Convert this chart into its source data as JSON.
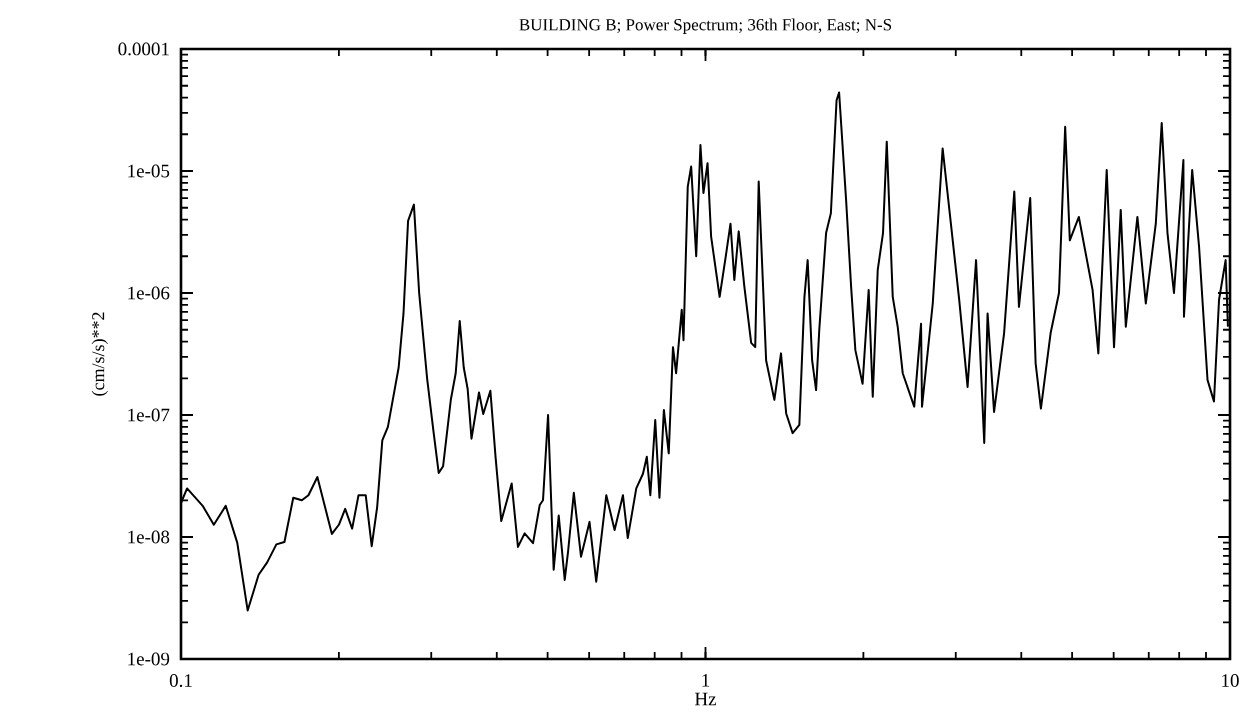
{
  "chart_data": {
    "type": "line",
    "title": "BUILDING B; Power Spectrum; 36th Floor, East; N-S",
    "xlabel": "Hz",
    "ylabel": "(cm/s/s)**2",
    "log": "xy",
    "grid": false,
    "marker": "none",
    "line_style": "solid",
    "color": "#000000",
    "xlim": [
      0.1,
      10
    ],
    "ylim": [
      1e-09,
      0.0001
    ],
    "xticks": [
      0.1,
      1,
      10
    ],
    "yticks": [
      {
        "value": 1e-09,
        "label": "1e-09"
      },
      {
        "value": 1e-08,
        "label": "1e-08"
      },
      {
        "value": 1e-07,
        "label": "1e-07"
      },
      {
        "value": 1e-06,
        "label": "1e-06"
      },
      {
        "value": 1e-05,
        "label": "1e-05"
      },
      0.0001
    ],
    "x": [
      0.1,
      0.1027,
      0.11,
      0.1155,
      0.1217,
      0.128,
      0.134,
      0.1406,
      0.146,
      0.152,
      0.1575,
      0.1637,
      0.17,
      0.175,
      0.182,
      0.194,
      0.2,
      0.2056,
      0.212,
      0.218,
      0.225,
      0.231,
      0.2366,
      0.242,
      0.248,
      0.26,
      0.2656,
      0.271,
      0.278,
      0.2845,
      0.2946,
      0.303,
      0.31,
      0.316,
      0.327,
      0.334,
      0.34,
      0.346,
      0.352,
      0.358,
      0.37,
      0.377,
      0.389,
      0.398,
      0.408,
      0.427,
      0.439,
      0.452,
      0.469,
      0.483,
      0.49,
      0.501,
      0.5135,
      0.525,
      0.539,
      0.547,
      0.561,
      0.579,
      0.601,
      0.619,
      0.647,
      0.671,
      0.696,
      0.711,
      0.738,
      0.76,
      0.773,
      0.785,
      0.802,
      0.817,
      0.833,
      0.851,
      0.867,
      0.879,
      0.901,
      0.908,
      0.925,
      0.939,
      0.96,
      0.978,
      0.991,
      1.009,
      1.025,
      1.064,
      1.095,
      1.116,
      1.135,
      1.157,
      1.186,
      1.222,
      1.244,
      1.263,
      1.305,
      1.353,
      1.393,
      1.425,
      1.466,
      1.51,
      1.544,
      1.566,
      1.597,
      1.625,
      1.648,
      1.698,
      1.734,
      1.778,
      1.798,
      1.854,
      1.895,
      1.931,
      1.993,
      2.047,
      2.084,
      2.13,
      2.18,
      2.216,
      2.275,
      2.325,
      2.377,
      2.5,
      2.576,
      2.587,
      2.712,
      2.832,
      2.894,
      3.046,
      3.16,
      3.28,
      3.4,
      3.45,
      3.55,
      3.71,
      3.88,
      3.96,
      4.16,
      4.26,
      4.36,
      4.55,
      4.72,
      4.85,
      4.95,
      5.15,
      5.47,
      5.61,
      5.82,
      6.01,
      6.19,
      6.33,
      6.66,
      6.91,
      7.22,
      7.41,
      7.6,
      7.82,
      8.15,
      8.17,
      8.47,
      8.73,
      9.06,
      9.32,
      9.53,
      9.81,
      9.91
    ],
    "values": [
      1.9e-08,
      2.5e-08,
      1.8e-08,
      1.26e-08,
      1.8e-08,
      9e-09,
      2.5e-09,
      4.9e-09,
      6.2e-09,
      8.7e-09,
      9.1e-09,
      2.1e-08,
      2e-08,
      2.2e-08,
      3.1e-08,
      1.06e-08,
      1.26e-08,
      1.7e-08,
      1.17e-08,
      2.2e-08,
      2.2e-08,
      8.4e-09,
      1.76e-08,
      6.2e-08,
      8e-08,
      2.45e-07,
      6.8e-07,
      3.9e-06,
      5.3e-06,
      1e-06,
      2e-07,
      7.3e-08,
      3.35e-08,
      3.8e-08,
      1.34e-07,
      2.2e-07,
      5.9e-07,
      2.45e-07,
      1.64e-07,
      6.4e-08,
      1.53e-07,
      1.02e-07,
      1.58e-07,
      4.5e-08,
      1.35e-08,
      2.75e-08,
      8.3e-09,
      1.07e-08,
      8.9e-09,
      1.83e-08,
      2e-08,
      1e-07,
      5.4e-09,
      1.5e-08,
      4.45e-09,
      7.6e-09,
      2.3e-08,
      6.9e-09,
      1.33e-08,
      4.3e-09,
      2.2e-08,
      1.14e-08,
      2.2e-08,
      9.8e-09,
      2.5e-08,
      3.3e-08,
      4.55e-08,
      2.2e-08,
      9.1e-08,
      2.1e-08,
      1.1e-07,
      4.85e-08,
      3.6e-07,
      2.2e-07,
      7.3e-07,
      4.1e-07,
      7.4e-06,
      1.09e-05,
      2e-06,
      1.63e-05,
      6.6e-06,
      1.16e-05,
      2.9e-06,
      9.3e-07,
      2.1e-06,
      3.7e-06,
      1.28e-06,
      3.2e-06,
      1.13e-06,
      3.9e-07,
      3.6e-07,
      8.2e-06,
      2.8e-07,
      1.33e-07,
      3.2e-07,
      1.03e-07,
      7.1e-08,
      8.3e-08,
      9.3e-07,
      1.86e-06,
      2.8e-07,
      1.6e-07,
      5e-07,
      3.1e-06,
      4.5e-06,
      3.8e-05,
      4.4e-05,
      5.8e-06,
      1.13e-06,
      3.4e-07,
      1.8e-07,
      1.06e-06,
      1.41e-07,
      1.55e-06,
      3.1e-06,
      1.74e-05,
      9.3e-07,
      5.3e-07,
      2.2e-07,
      1.17e-07,
      5.6e-07,
      1.17e-07,
      8.2e-07,
      1.53e-05,
      6.6e-06,
      8.8e-07,
      1.7e-07,
      1.86e-06,
      5.9e-08,
      6.8e-07,
      1.06e-07,
      4.7e-07,
      6.8e-06,
      7.7e-07,
      6e-06,
      2.65e-07,
      1.13e-07,
      4.7e-07,
      1e-06,
      2.3e-05,
      2.7e-06,
      4.2e-06,
      1.06e-06,
      3.2e-07,
      1.02e-05,
      3.6e-07,
      4.8e-06,
      5.3e-07,
      4.2e-06,
      8.2e-07,
      3.7e-06,
      2.47e-05,
      3.1e-06,
      1e-06,
      1.23e-05,
      6.4e-07,
      1.02e-05,
      2.4e-06,
      1.94e-07,
      1.29e-07,
      8.8e-07,
      1.86e-06,
      5.3e-07
    ]
  }
}
